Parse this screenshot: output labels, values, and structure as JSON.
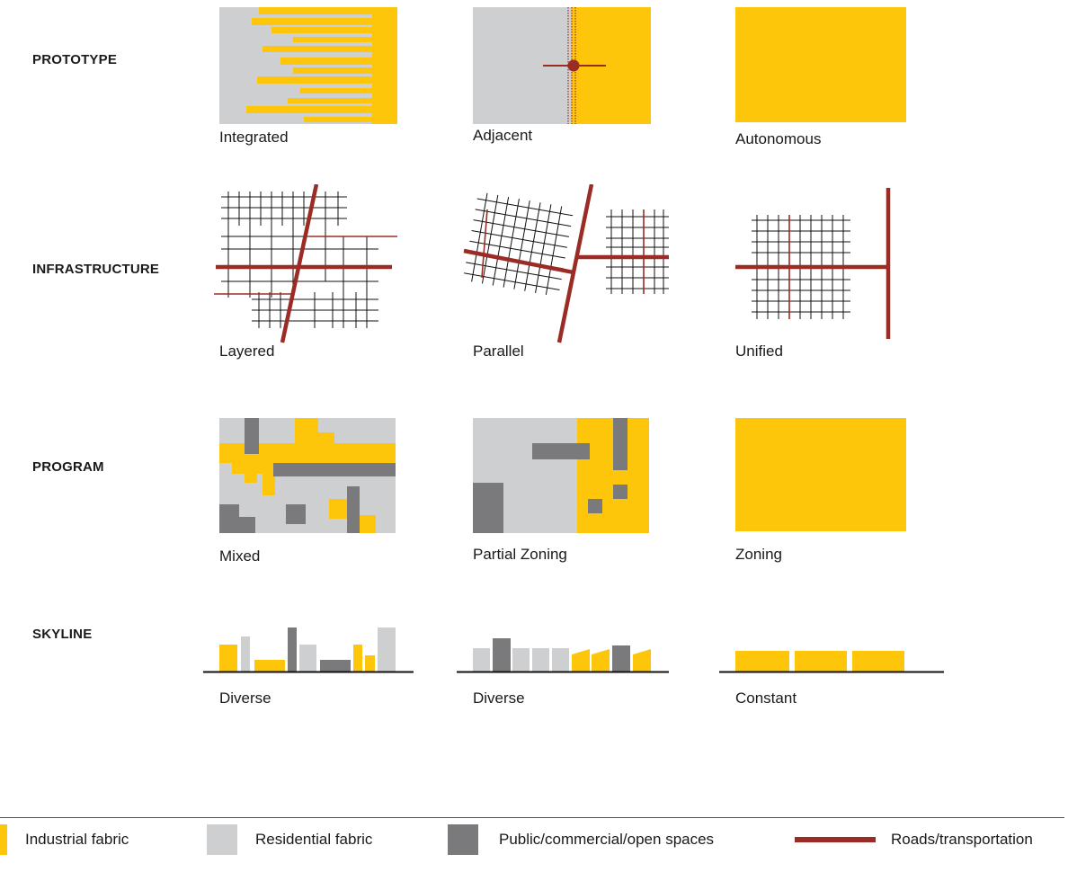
{
  "rows": {
    "prototype": "PROTOTYPE",
    "infrastructure": "INFRASTRUCTURE",
    "program": "PROGRAM",
    "skyline": "SKYLINE"
  },
  "captions": {
    "integrated": "Integrated",
    "adjacent": "Adjacent",
    "autonomous": "Autonomous",
    "layered": "Layered",
    "parallel": "Parallel",
    "unified": "Unified",
    "mixed": "Mixed",
    "partial_zoning": "Partial Zoning",
    "zoning": "Zoning",
    "skyline_1": "Diverse",
    "skyline_2": "Diverse",
    "skyline_3": "Constant"
  },
  "legend": {
    "industrial": "Industrial fabric",
    "residential": "Residential fabric",
    "public": "Public/commercial/open spaces",
    "roads": "Roads/transportation"
  },
  "colors": {
    "industrial": "#FDC60B",
    "residential": "#CECFD1",
    "public": "#7A7A7C",
    "roads": "#9B2B25",
    "grid": "#111111"
  }
}
